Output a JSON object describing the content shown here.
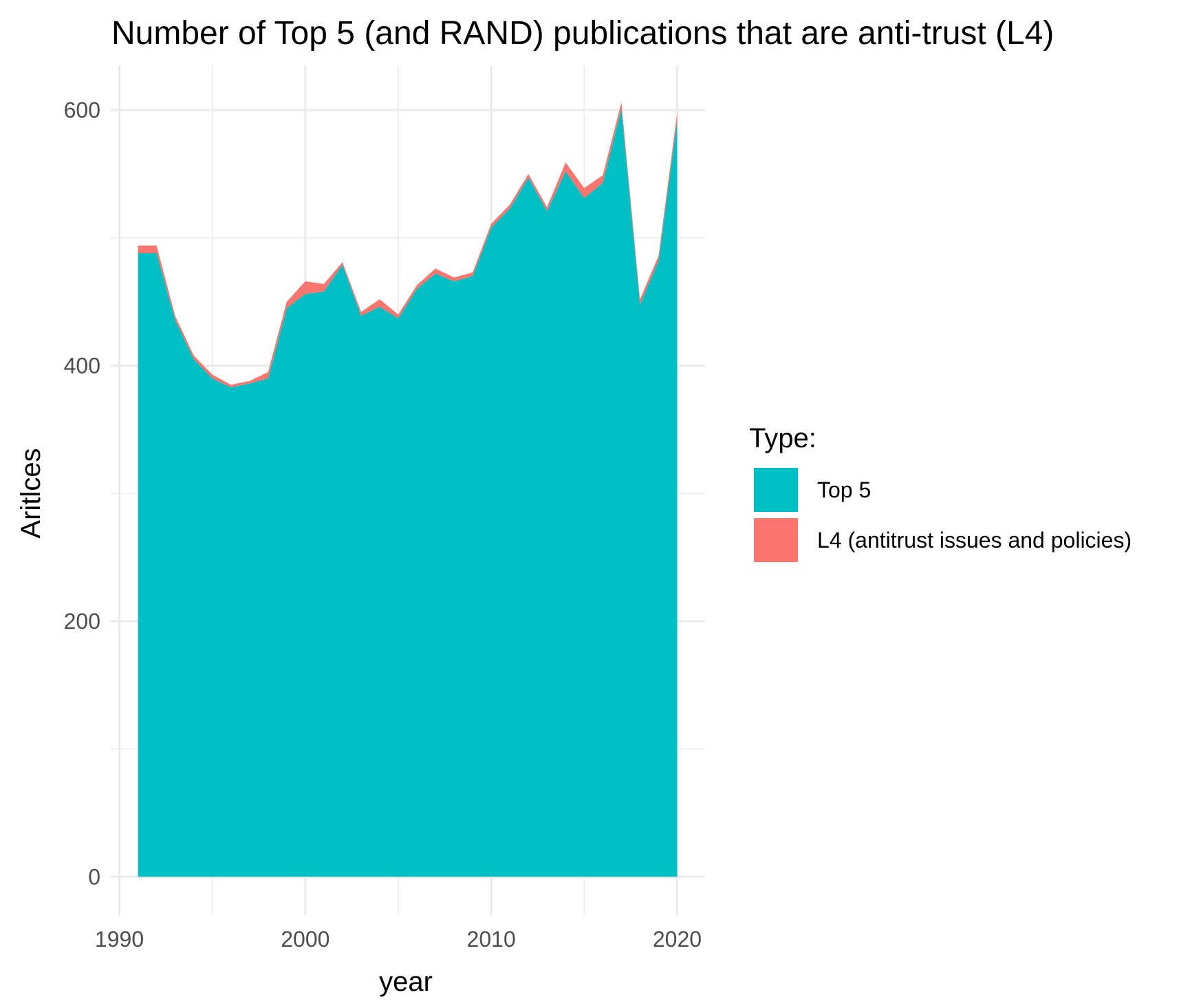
{
  "chart_data": {
    "type": "area",
    "stacked": true,
    "title": "Number of Top 5 (and RAND) publications that are anti-trust (L4)",
    "xlabel": "year",
    "ylabel": "Aritlces",
    "xlim": [
      1989.5,
      2021.5
    ],
    "ylim": [
      -30,
      635
    ],
    "x_ticks": [
      1990,
      2000,
      2010,
      2020
    ],
    "x_tick_labels": [
      "1990",
      "2000",
      "2010",
      "2020"
    ],
    "x_minor_ticks": [
      1995,
      2005,
      2015
    ],
    "y_ticks": [
      0,
      200,
      400,
      600
    ],
    "y_tick_labels": [
      "0",
      "200",
      "400",
      "600"
    ],
    "y_minor_ticks": [
      100,
      300,
      500
    ],
    "grid": true,
    "legend": {
      "title": "Type:",
      "position": "right"
    },
    "x": [
      1991,
      1992,
      1993,
      1994,
      1995,
      1996,
      1997,
      1998,
      1999,
      2000,
      2001,
      2002,
      2003,
      2004,
      2005,
      2006,
      2007,
      2008,
      2009,
      2010,
      2011,
      2012,
      2013,
      2014,
      2015,
      2016,
      2017,
      2018,
      2019,
      2020
    ],
    "series": [
      {
        "name": "Top 5",
        "color": "#00BFC4",
        "values": [
          488,
          488,
          436,
          405,
          390,
          383,
          386,
          390,
          445,
          456,
          458,
          479,
          439,
          446,
          437,
          460,
          472,
          466,
          470,
          508,
          523,
          547,
          521,
          552,
          531,
          543,
          601,
          448,
          482,
          592
        ]
      },
      {
        "name": "L4 (antitrust issues and policies)",
        "color": "#F8766D",
        "values": [
          6,
          6,
          3,
          3,
          3,
          2,
          2,
          5,
          5,
          10,
          6,
          2,
          3,
          6,
          3,
          3,
          4,
          3,
          3,
          3,
          3,
          3,
          3,
          7,
          8,
          6,
          5,
          4,
          4,
          6
        ]
      }
    ]
  }
}
